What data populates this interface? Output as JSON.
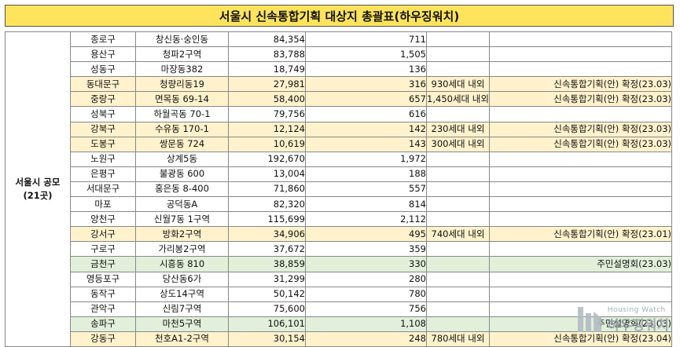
{
  "title": "서울시 신속통합기획 대상지 총괄표(하우징워치)",
  "group_label": "서울시 공모\n(21곳)",
  "rows": [
    {
      "district": "종로구",
      "site": "창신동·숭인동",
      "area": "84,354",
      "households": "711",
      "plan": "",
      "status": "",
      "highlight": "none"
    },
    {
      "district": "용산구",
      "site": "청파2구역",
      "area": "83,788",
      "households": "1,505",
      "plan": "",
      "status": "",
      "highlight": "none"
    },
    {
      "district": "성동구",
      "site": "마장동382",
      "area": "18,749",
      "households": "136",
      "plan": "",
      "status": "",
      "highlight": "none"
    },
    {
      "district": "동대문구",
      "site": "청량리동19",
      "area": "27,981",
      "households": "316",
      "plan": "930세대 내외",
      "status": "신속통합기획(안) 확정(23.03)",
      "highlight": "yellow"
    },
    {
      "district": "중랑구",
      "site": "면목동 69-14",
      "area": "58,400",
      "households": "657",
      "plan": "1,450세대 내외",
      "status": "신속통합기획(안) 확정(23.03)",
      "highlight": "yellow"
    },
    {
      "district": "성북구",
      "site": "하월곡동 70-1",
      "area": "79,756",
      "households": "616",
      "plan": "",
      "status": "",
      "highlight": "none"
    },
    {
      "district": "강북구",
      "site": "수유동 170-1",
      "area": "12,124",
      "households": "142",
      "plan": "230세대 내외",
      "status": "신속통합기획(안) 확정(23.03)",
      "highlight": "yellow"
    },
    {
      "district": "도봉구",
      "site": "쌍문동 724",
      "area": "10,619",
      "households": "143",
      "plan": "300세대 내외",
      "status": "신속통합기획(안) 확정(23.03)",
      "highlight": "yellow"
    },
    {
      "district": "노원구",
      "site": "상계5동",
      "area": "192,670",
      "households": "1,972",
      "plan": "",
      "status": "",
      "highlight": "none"
    },
    {
      "district": "은평구",
      "site": "불광동 600",
      "area": "13,004",
      "households": "188",
      "plan": "",
      "status": "",
      "highlight": "none"
    },
    {
      "district": "서대문구",
      "site": "홍은동 8-400",
      "area": "71,860",
      "households": "557",
      "plan": "",
      "status": "",
      "highlight": "none"
    },
    {
      "district": "마포",
      "site": "공덕동A",
      "area": "82,320",
      "households": "814",
      "plan": "",
      "status": "",
      "highlight": "none"
    },
    {
      "district": "양천구",
      "site": "신월7동 1구역",
      "area": "115,699",
      "households": "2,112",
      "plan": "",
      "status": "",
      "highlight": "none"
    },
    {
      "district": "강서구",
      "site": "방화2구역",
      "area": "34,906",
      "households": "495",
      "plan": "740세대 내외",
      "status": "신속통합기획(안) 확정(23.01)",
      "highlight": "yellow"
    },
    {
      "district": "구로구",
      "site": "가리봉2구역",
      "area": "37,672",
      "households": "359",
      "plan": "",
      "status": "",
      "highlight": "none"
    },
    {
      "district": "금천구",
      "site": "시흥동 810",
      "area": "38,859",
      "households": "330",
      "plan": "",
      "status": "주민설명회(23.03)",
      "highlight": "green"
    },
    {
      "district": "영등포구",
      "site": "당산동6가",
      "area": "31,299",
      "households": "280",
      "plan": "",
      "status": "",
      "highlight": "none"
    },
    {
      "district": "동작구",
      "site": "상도14구역",
      "area": "50,142",
      "households": "780",
      "plan": "",
      "status": "",
      "highlight": "none"
    },
    {
      "district": "관악구",
      "site": "신림7구역",
      "area": "75,600",
      "households": "756",
      "plan": "",
      "status": "",
      "highlight": "none"
    },
    {
      "district": "송파구",
      "site": "마천5구역",
      "area": "106,101",
      "households": "1,108",
      "plan": "",
      "status": "주민설명회(23.03)",
      "highlight": "green"
    },
    {
      "district": "강동구",
      "site": "천호A1-2구역",
      "area": "30,154",
      "households": "248",
      "plan": "780세대 내외",
      "status": "신속통합기획(안) 확정(23.04)",
      "highlight": "yellow"
    }
  ],
  "watermark": {
    "small": "Housing Watch",
    "big": "하우징워치",
    "icon": "housing-watch-logo-icon"
  }
}
